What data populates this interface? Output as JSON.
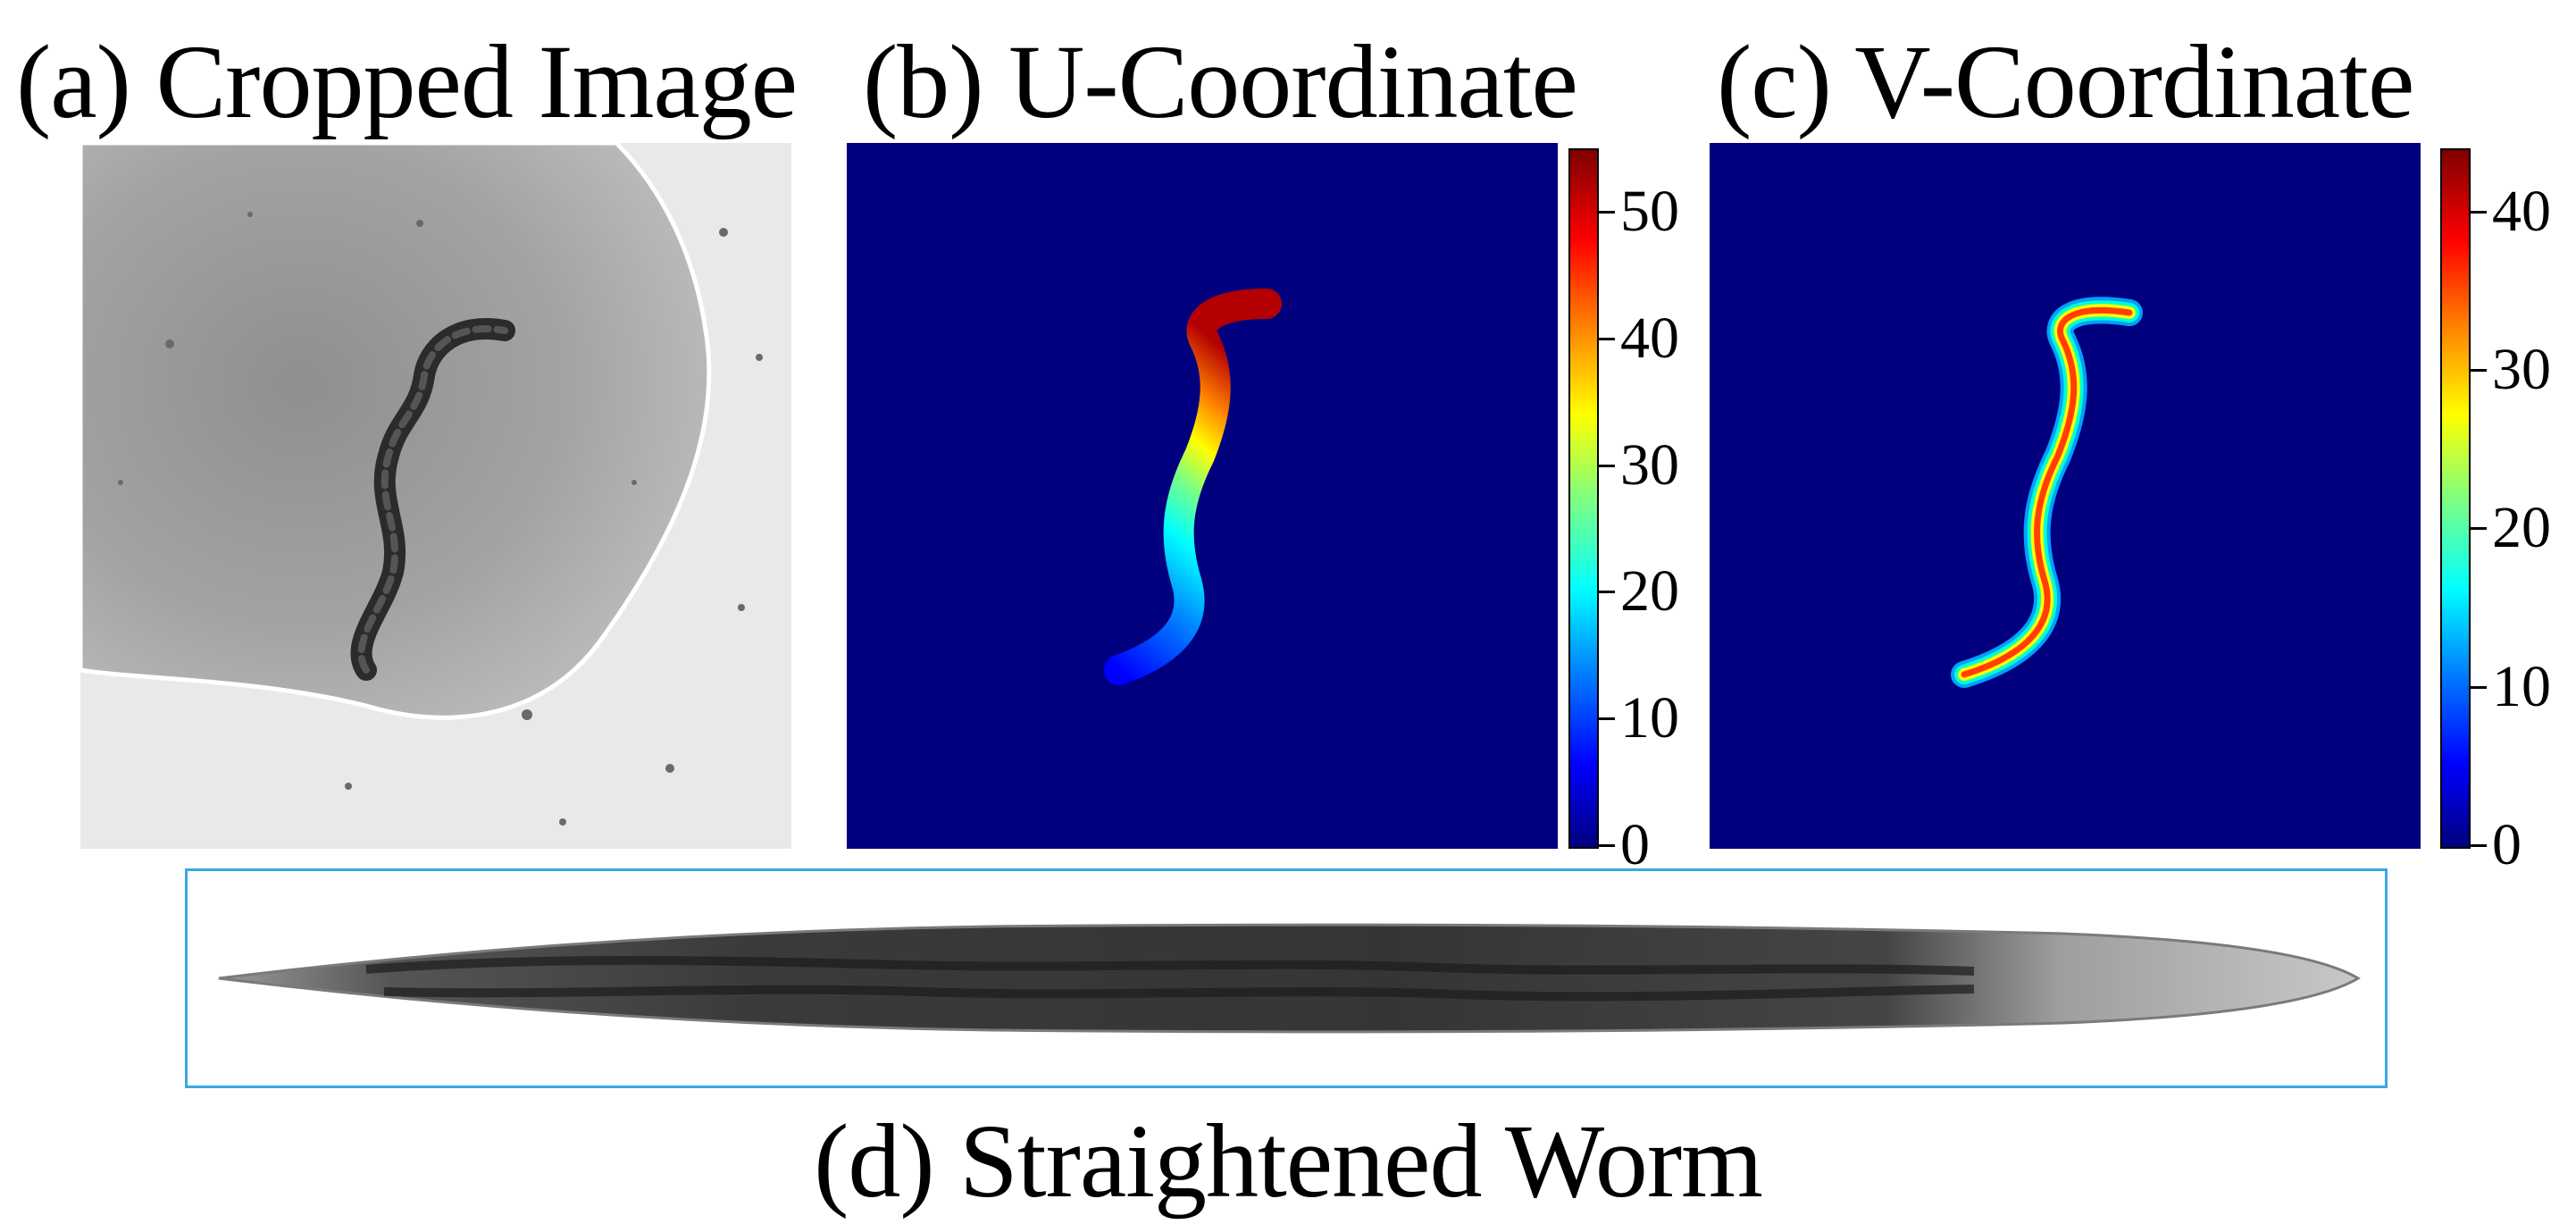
{
  "panels": {
    "a": {
      "title": "(a) Cropped Image"
    },
    "b": {
      "title": "(b) U-Coordinate",
      "colorbar": {
        "min": 0,
        "max": 55,
        "ticks": [
          "0",
          "10",
          "20",
          "30",
          "40",
          "50"
        ]
      }
    },
    "c": {
      "title": "(c) V-Coordinate",
      "colorbar": {
        "min": 0,
        "max": 44,
        "ticks": [
          "0",
          "10",
          "20",
          "30",
          "40"
        ]
      }
    },
    "d": {
      "title": "(d) Straightened Worm"
    }
  },
  "colors": {
    "background_map": "#00007f",
    "frame_d": "#3aa7e2",
    "colormap": "jet"
  }
}
